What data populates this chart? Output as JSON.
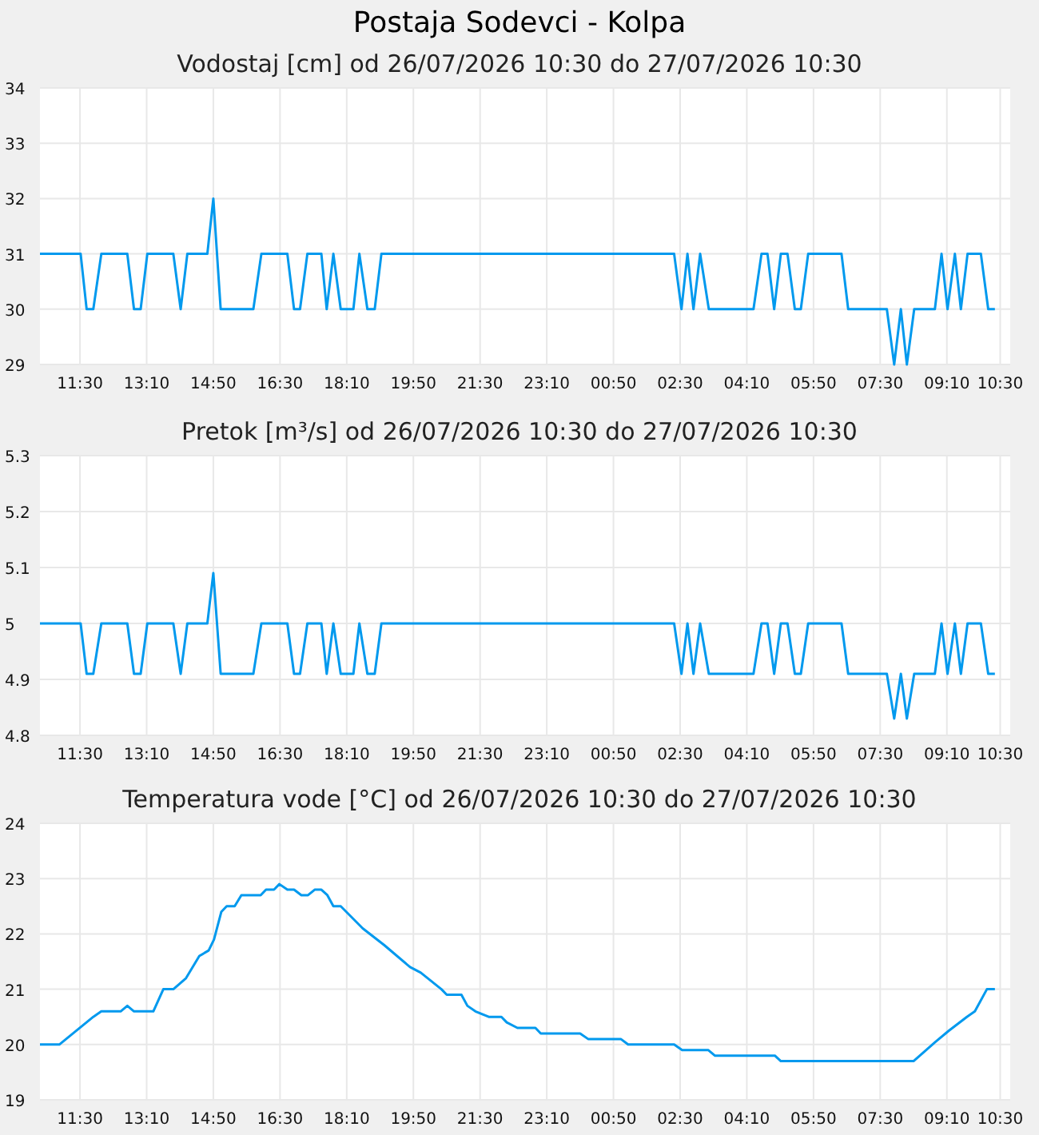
{
  "chart_data": [
    {
      "type": "line",
      "title": "Postaja Sodevci - Kolpa",
      "subtitle": "Vodostaj [cm] od 26/07/2026 10:30 do 27/07/2026 10:30",
      "grid": true,
      "xlim": [
        "2026-07-26T10:30",
        "2026-07-27T10:45"
      ],
      "ylim": [
        29,
        34
      ],
      "yticks": [
        29,
        30,
        31,
        32,
        33,
        34
      ],
      "xticks": [
        {
          "value": "2026-07-26T11:30",
          "label": "11:30"
        },
        {
          "value": "2026-07-26T13:10",
          "label": "13:10"
        },
        {
          "value": "2026-07-26T14:50",
          "label": "14:50"
        },
        {
          "value": "2026-07-26T16:30",
          "label": "16:30"
        },
        {
          "value": "2026-07-26T18:10",
          "label": "18:10"
        },
        {
          "value": "2026-07-26T19:50",
          "label": "19:50"
        },
        {
          "value": "2026-07-26T21:30",
          "label": "21:30"
        },
        {
          "value": "2026-07-26T23:10",
          "label": "23:10"
        },
        {
          "value": "2026-07-27T00:50",
          "label": "00:50"
        },
        {
          "value": "2026-07-27T02:30",
          "label": "02:30"
        },
        {
          "value": "2026-07-27T04:10",
          "label": "04:10"
        },
        {
          "value": "2026-07-27T05:50",
          "label": "05:50"
        },
        {
          "value": "2026-07-27T07:30",
          "label": "07:30"
        },
        {
          "value": "2026-07-27T09:10",
          "label": "09:10"
        },
        {
          "value": "2026-07-27T10:30",
          "label": "10:30"
        }
      ],
      "series": [
        {
          "color": "#0099ee",
          "x": [
            "2026-07-26T10:30",
            "2026-07-26T11:31",
            "2026-07-26T11:40",
            "2026-07-26T11:50",
            "2026-07-26T12:02",
            "2026-07-26T12:41",
            "2026-07-26T12:51",
            "2026-07-26T13:01",
            "2026-07-26T13:11",
            "2026-07-26T13:50",
            "2026-07-26T14:01",
            "2026-07-26T14:11",
            "2026-07-26T14:41",
            "2026-07-26T14:50",
            "2026-07-26T15:01",
            "2026-07-26T15:50",
            "2026-07-26T16:02",
            "2026-07-26T16:41",
            "2026-07-26T16:51",
            "2026-07-26T17:00",
            "2026-07-26T17:11",
            "2026-07-26T17:32",
            "2026-07-26T17:40",
            "2026-07-26T17:50",
            "2026-07-26T18:01",
            "2026-07-26T18:20",
            "2026-07-26T18:29",
            "2026-07-26T18:41",
            "2026-07-26T18:52",
            "2026-07-26T19:02",
            "2026-07-27T02:21",
            "2026-07-27T02:32",
            "2026-07-27T02:41",
            "2026-07-27T02:50",
            "2026-07-27T03:00",
            "2026-07-27T03:13",
            "2026-07-27T04:20",
            "2026-07-27T04:32",
            "2026-07-27T04:41",
            "2026-07-27T04:51",
            "2026-07-27T05:01",
            "2026-07-27T05:11",
            "2026-07-27T05:22",
            "2026-07-27T05:31",
            "2026-07-27T05:42",
            "2026-07-27T06:32",
            "2026-07-27T06:42",
            "2026-07-27T07:40",
            "2026-07-27T07:51",
            "2026-07-27T08:01",
            "2026-07-27T08:10",
            "2026-07-27T08:21",
            "2026-07-27T08:52",
            "2026-07-27T09:02",
            "2026-07-27T09:11",
            "2026-07-27T09:22",
            "2026-07-27T09:31",
            "2026-07-27T09:41",
            "2026-07-27T10:01",
            "2026-07-27T10:12",
            "2026-07-27T10:22"
          ],
          "values": [
            31,
            31,
            30,
            30,
            31,
            31,
            30,
            30,
            31,
            31,
            30,
            31,
            31,
            32,
            30,
            30,
            31,
            31,
            30,
            30,
            31,
            31,
            30,
            31,
            30,
            30,
            31,
            30,
            30,
            31,
            31,
            30,
            31,
            30,
            31,
            30,
            30,
            31,
            31,
            30,
            31,
            31,
            30,
            30,
            31,
            31,
            30,
            30,
            29,
            30,
            29,
            30,
            30,
            31,
            30,
            31,
            30,
            31,
            31,
            30,
            30
          ]
        }
      ]
    },
    {
      "type": "line",
      "title": "Pretok [m³/s] od 26/07/2026 10:30 do 27/07/2026 10:30",
      "grid": true,
      "xlim": [
        "2026-07-26T10:30",
        "2026-07-27T10:45"
      ],
      "ylim": [
        4.8,
        5.3
      ],
      "yticks": [
        4.8,
        4.9,
        5,
        5.1,
        5.2,
        5.3
      ],
      "xticks": [
        {
          "value": "2026-07-26T11:30",
          "label": "11:30"
        },
        {
          "value": "2026-07-26T13:10",
          "label": "13:10"
        },
        {
          "value": "2026-07-26T14:50",
          "label": "14:50"
        },
        {
          "value": "2026-07-26T16:30",
          "label": "16:30"
        },
        {
          "value": "2026-07-26T18:10",
          "label": "18:10"
        },
        {
          "value": "2026-07-26T19:50",
          "label": "19:50"
        },
        {
          "value": "2026-07-26T21:30",
          "label": "21:30"
        },
        {
          "value": "2026-07-26T23:10",
          "label": "23:10"
        },
        {
          "value": "2026-07-27T00:50",
          "label": "00:50"
        },
        {
          "value": "2026-07-27T02:30",
          "label": "02:30"
        },
        {
          "value": "2026-07-27T04:10",
          "label": "04:10"
        },
        {
          "value": "2026-07-27T05:50",
          "label": "05:50"
        },
        {
          "value": "2026-07-27T07:30",
          "label": "07:30"
        },
        {
          "value": "2026-07-27T09:10",
          "label": "09:10"
        },
        {
          "value": "2026-07-27T10:30",
          "label": "10:30"
        }
      ],
      "series": [
        {
          "color": "#0099ee",
          "x": [
            "2026-07-26T10:30",
            "2026-07-26T11:31",
            "2026-07-26T11:40",
            "2026-07-26T11:50",
            "2026-07-26T12:02",
            "2026-07-26T12:41",
            "2026-07-26T12:51",
            "2026-07-26T13:01",
            "2026-07-26T13:11",
            "2026-07-26T13:50",
            "2026-07-26T14:01",
            "2026-07-26T14:11",
            "2026-07-26T14:41",
            "2026-07-26T14:50",
            "2026-07-26T15:01",
            "2026-07-26T15:50",
            "2026-07-26T16:02",
            "2026-07-26T16:41",
            "2026-07-26T16:51",
            "2026-07-26T17:00",
            "2026-07-26T17:11",
            "2026-07-26T17:32",
            "2026-07-26T17:40",
            "2026-07-26T17:50",
            "2026-07-26T18:01",
            "2026-07-26T18:20",
            "2026-07-26T18:29",
            "2026-07-26T18:41",
            "2026-07-26T18:52",
            "2026-07-26T19:02",
            "2026-07-27T02:21",
            "2026-07-27T02:32",
            "2026-07-27T02:41",
            "2026-07-27T02:50",
            "2026-07-27T03:00",
            "2026-07-27T03:13",
            "2026-07-27T04:20",
            "2026-07-27T04:32",
            "2026-07-27T04:41",
            "2026-07-27T04:51",
            "2026-07-27T05:01",
            "2026-07-27T05:11",
            "2026-07-27T05:22",
            "2026-07-27T05:31",
            "2026-07-27T05:42",
            "2026-07-27T06:32",
            "2026-07-27T06:42",
            "2026-07-27T07:40",
            "2026-07-27T07:51",
            "2026-07-27T08:01",
            "2026-07-27T08:10",
            "2026-07-27T08:21",
            "2026-07-27T08:52",
            "2026-07-27T09:02",
            "2026-07-27T09:11",
            "2026-07-27T09:22",
            "2026-07-27T09:31",
            "2026-07-27T09:41",
            "2026-07-27T10:01",
            "2026-07-27T10:12",
            "2026-07-27T10:22"
          ],
          "values": [
            5,
            5,
            4.91,
            4.91,
            5,
            5,
            4.91,
            4.91,
            5,
            5,
            4.91,
            5,
            5,
            5.09,
            4.91,
            4.91,
            5,
            5,
            4.91,
            4.91,
            5,
            5,
            4.91,
            5,
            4.91,
            4.91,
            5,
            4.91,
            4.91,
            5,
            5,
            4.91,
            5,
            4.91,
            5,
            4.91,
            4.91,
            5,
            5,
            4.91,
            5,
            5,
            4.91,
            4.91,
            5,
            5,
            4.91,
            4.91,
            4.83,
            4.91,
            4.83,
            4.91,
            4.91,
            5,
            4.91,
            5,
            4.91,
            5,
            5,
            4.91,
            4.91
          ]
        }
      ]
    },
    {
      "type": "line",
      "title": "Temperatura vode [°C] od 26/07/2026 10:30 do 27/07/2026 10:30",
      "grid": true,
      "xlim": [
        "2026-07-26T10:30",
        "2026-07-27T10:45"
      ],
      "ylim": [
        19,
        24
      ],
      "yticks": [
        19,
        20,
        21,
        22,
        23,
        24
      ],
      "xticks": [
        {
          "value": "2026-07-26T11:30",
          "label": "11:30"
        },
        {
          "value": "2026-07-26T13:10",
          "label": "13:10"
        },
        {
          "value": "2026-07-26T14:50",
          "label": "14:50"
        },
        {
          "value": "2026-07-26T16:30",
          "label": "16:30"
        },
        {
          "value": "2026-07-26T18:10",
          "label": "18:10"
        },
        {
          "value": "2026-07-26T19:50",
          "label": "19:50"
        },
        {
          "value": "2026-07-26T21:30",
          "label": "21:30"
        },
        {
          "value": "2026-07-26T23:10",
          "label": "23:10"
        },
        {
          "value": "2026-07-27T00:50",
          "label": "00:50"
        },
        {
          "value": "2026-07-27T02:30",
          "label": "02:30"
        },
        {
          "value": "2026-07-27T04:10",
          "label": "04:10"
        },
        {
          "value": "2026-07-27T05:50",
          "label": "05:50"
        },
        {
          "value": "2026-07-27T07:30",
          "label": "07:30"
        },
        {
          "value": "2026-07-27T09:10",
          "label": "09:10"
        },
        {
          "value": "2026-07-27T10:30",
          "label": "10:30"
        }
      ],
      "series": [
        {
          "color": "#0099ee",
          "x": [
            "2026-07-26T10:30",
            "2026-07-26T10:59",
            "2026-07-26T11:50",
            "2026-07-26T12:02",
            "2026-07-26T12:31",
            "2026-07-26T12:41",
            "2026-07-26T12:51",
            "2026-07-26T13:20",
            "2026-07-26T13:35",
            "2026-07-26T13:50",
            "2026-07-26T14:09",
            "2026-07-26T14:29",
            "2026-07-26T14:43",
            "2026-07-26T14:51",
            "2026-07-26T15:02",
            "2026-07-26T15:10",
            "2026-07-26T15:22",
            "2026-07-26T15:32",
            "2026-07-26T16:01",
            "2026-07-26T16:09",
            "2026-07-26T16:21",
            "2026-07-26T16:29",
            "2026-07-26T16:41",
            "2026-07-26T16:51",
            "2026-07-26T17:02",
            "2026-07-26T17:12",
            "2026-07-26T17:22",
            "2026-07-26T17:32",
            "2026-07-26T17:41",
            "2026-07-26T17:50",
            "2026-07-26T18:01",
            "2026-07-26T18:34",
            "2026-07-26T19:06",
            "2026-07-26T19:45",
            "2026-07-26T20:01",
            "2026-07-26T20:32",
            "2026-07-26T20:40",
            "2026-07-26T21:02",
            "2026-07-26T21:11",
            "2026-07-26T21:23",
            "2026-07-26T21:43",
            "2026-07-26T22:02",
            "2026-07-26T22:10",
            "2026-07-26T22:26",
            "2026-07-26T22:53",
            "2026-07-26T23:01",
            "2026-07-27T00:00",
            "2026-07-27T00:12",
            "2026-07-27T01:01",
            "2026-07-27T01:12",
            "2026-07-27T02:21",
            "2026-07-27T02:33",
            "2026-07-27T03:12",
            "2026-07-27T03:22",
            "2026-07-27T04:52",
            "2026-07-27T05:01",
            "2026-07-27T08:20",
            "2026-07-27T08:53",
            "2026-07-27T09:13",
            "2026-07-27T09:40",
            "2026-07-27T09:52",
            "2026-07-27T10:10",
            "2026-07-27T10:22"
          ],
          "values": [
            20,
            20,
            20.5,
            20.6,
            20.6,
            20.7,
            20.6,
            20.6,
            21,
            21,
            21.2,
            21.6,
            21.7,
            21.9,
            22.4,
            22.5,
            22.5,
            22.7,
            22.7,
            22.8,
            22.8,
            22.9,
            22.8,
            22.8,
            22.7,
            22.7,
            22.8,
            22.8,
            22.7,
            22.5,
            22.5,
            22.1,
            21.8,
            21.4,
            21.3,
            21,
            20.9,
            20.9,
            20.7,
            20.6,
            20.5,
            20.5,
            20.4,
            20.3,
            20.3,
            20.2,
            20.2,
            20.1,
            20.1,
            20,
            20,
            19.9,
            19.9,
            19.8,
            19.8,
            19.7,
            19.7,
            20.05,
            20.25,
            20.5,
            20.6,
            21,
            21
          ]
        }
      ]
    }
  ]
}
